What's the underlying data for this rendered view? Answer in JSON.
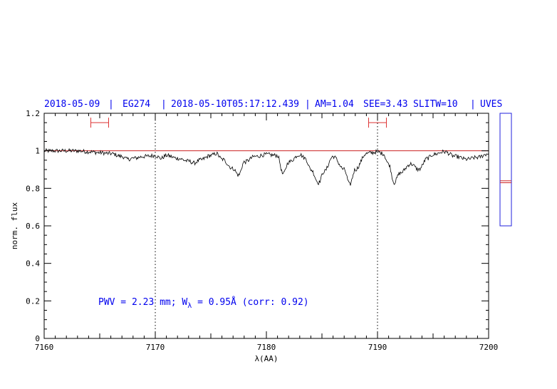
{
  "header": {
    "date": "2018-05-09",
    "target": "EG274",
    "timestamp": "2018-05-10T05:17:12.439",
    "airmass": "AM=1.04",
    "seeing": "SEE=3.43",
    "slit": "SLITW=10",
    "instrument": "UVES"
  },
  "annotation": {
    "prefix": "PWV = 2.23 mm; W",
    "subscript": "λ",
    "suffix": " = 0.95Å (corr: 0.92)"
  },
  "chart_data": {
    "type": "line",
    "xlabel": "λ(AA)",
    "ylabel": "norm. flux",
    "xlim": [
      7160,
      7200
    ],
    "ylim": [
      0,
      1.2
    ],
    "x_ticks": [
      7160,
      7170,
      7180,
      7190,
      7200
    ],
    "x_tick_labels": [
      "7160",
      "7170",
      "7180",
      "7190",
      "7200"
    ],
    "y_ticks": [
      0,
      0.2,
      0.4,
      0.6,
      0.8,
      1,
      1.2
    ],
    "y_tick_labels": [
      "0",
      "0.2",
      "0.4",
      "0.6",
      "0.8",
      "1",
      "1.2"
    ],
    "continuum_level": 1.0,
    "vertical_markers": [
      7170,
      7190
    ],
    "range_markers": [
      {
        "center": 7165,
        "half_width": 0.5,
        "y": 1.15
      },
      {
        "center": 7190,
        "half_width": 0.5,
        "y": 1.15
      }
    ],
    "series": [
      {
        "color": "#000000",
        "x": [
          7160,
          7161,
          7162,
          7163,
          7164,
          7165,
          7166,
          7167,
          7167.5,
          7168,
          7169,
          7170,
          7170.5,
          7171,
          7172,
          7173,
          7173.5,
          7174,
          7175,
          7175.5,
          7176,
          7177,
          7177.5,
          7178,
          7179,
          7180,
          7181,
          7181.5,
          7182,
          7183,
          7183.5,
          7184,
          7184.7,
          7185.2,
          7186,
          7187,
          7187.5,
          7188,
          7189,
          7189.5,
          7190,
          7190.5,
          7191,
          7191.5,
          7192,
          7193,
          7193.7,
          7194.5,
          7195,
          7196,
          7197,
          7198,
          7199,
          7200
        ],
        "y": [
          1.0,
          1.0,
          1.0,
          1.0,
          0.995,
          0.99,
          0.985,
          0.97,
          0.955,
          0.96,
          0.97,
          0.975,
          0.96,
          0.975,
          0.96,
          0.945,
          0.935,
          0.95,
          0.975,
          0.985,
          0.955,
          0.905,
          0.87,
          0.94,
          0.97,
          0.98,
          0.975,
          0.875,
          0.94,
          0.98,
          0.96,
          0.9,
          0.83,
          0.89,
          0.97,
          0.9,
          0.82,
          0.9,
          0.985,
          0.99,
          0.995,
          0.985,
          0.93,
          0.83,
          0.88,
          0.93,
          0.9,
          0.96,
          0.98,
          0.995,
          0.97,
          0.955,
          0.965,
          0.985
        ]
      }
    ]
  },
  "side_panel": {
    "ylim": [
      0,
      1.2
    ],
    "box_range": [
      0.6,
      1.2
    ],
    "marker_levels": [
      0.83,
      0.84
    ]
  }
}
